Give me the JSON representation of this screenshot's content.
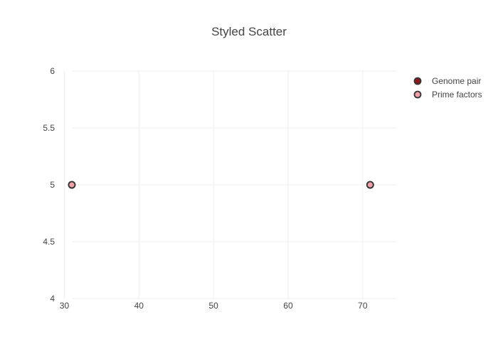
{
  "chart_data": {
    "type": "scatter",
    "title": "Styled Scatter",
    "xlabel": "",
    "ylabel": "",
    "xlim": [
      29,
      74.5
    ],
    "ylim": [
      4,
      6
    ],
    "x_ticks": [
      30,
      40,
      50,
      60,
      70
    ],
    "y_ticks": [
      4,
      4.5,
      5,
      5.5,
      6
    ],
    "x_tick_labels": [
      "30",
      "40",
      "50",
      "60",
      "70"
    ],
    "y_tick_labels": [
      "4",
      "4.5",
      "5",
      "5.5",
      "6"
    ],
    "grid": true,
    "legend_position": "top-right",
    "series": [
      {
        "name": "Genome pair",
        "x": [
          31,
          71
        ],
        "y": [
          5,
          5
        ],
        "marker_color": "#8b1a1a",
        "marker_line_color": "#333333"
      },
      {
        "name": "Prime factors",
        "x": [
          31,
          71
        ],
        "y": [
          5,
          5
        ],
        "marker_color": "#f2a0a8",
        "marker_line_color": "#333333"
      }
    ]
  }
}
